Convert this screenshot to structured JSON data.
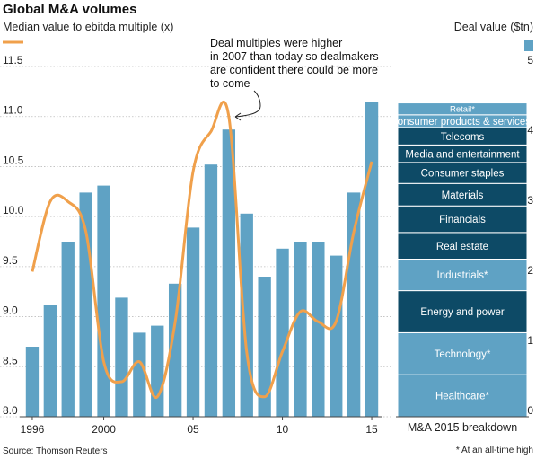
{
  "chart_data": {
    "type": "bar+line",
    "title": "Global M&A volumes",
    "line_axis_label": "Median value to ebitda multiple (x)",
    "bar_axis_label": "Deal value ($tn)",
    "x": [
      1996,
      1997,
      1998,
      1999,
      2000,
      2001,
      2002,
      2003,
      2004,
      2005,
      2006,
      2007,
      2008,
      2009,
      2010,
      2011,
      2012,
      2013,
      2014,
      2015
    ],
    "x_tick_labels": [
      "1996",
      "2000",
      "05",
      "10",
      "15"
    ],
    "x_tick_years": [
      1996,
      2000,
      2005,
      2010,
      2015
    ],
    "series": [
      {
        "kind": "bar",
        "axis": "right",
        "color": "#5fa2c4",
        "values": [
          1.0,
          1.6,
          2.5,
          3.2,
          3.3,
          1.7,
          1.2,
          1.3,
          1.9,
          2.7,
          3.6,
          4.1,
          2.9,
          2.0,
          2.4,
          2.5,
          2.5,
          2.3,
          3.2,
          4.5
        ]
      },
      {
        "kind": "line",
        "axis": "left",
        "color": "#f0a04b",
        "values": [
          9.45,
          10.15,
          10.15,
          9.85,
          8.55,
          8.35,
          8.55,
          8.2,
          8.95,
          10.45,
          10.85,
          11.0,
          8.65,
          8.2,
          8.65,
          9.05,
          8.95,
          8.95,
          9.85,
          10.55
        ]
      }
    ],
    "left_axis": {
      "range": [
        8.0,
        11.5
      ],
      "ticks": [
        "8.0",
        "8.5",
        "9.0",
        "9.5",
        "10.0",
        "10.5",
        "11.0",
        "11.5"
      ]
    },
    "right_axis": {
      "range": [
        0,
        5
      ],
      "ticks": [
        "0",
        "1",
        "2",
        "3",
        "4",
        "5"
      ]
    },
    "annotation": "Deal multiples were higher in 2007 than today so dealmakers are confident there could be more to come",
    "annotation_lines": [
      "Deal multiples were higher",
      "in 2007 than today so dealmakers",
      "are confident there could be more",
      "to come"
    ],
    "breakdown": {
      "label": "M&A 2015 breakdown",
      "segments": [
        {
          "name": "Healthcare*",
          "value": 0.6,
          "color": "#5fa2c4"
        },
        {
          "name": "Technology*",
          "value": 0.6,
          "color": "#5fa2c4"
        },
        {
          "name": "Energy and power",
          "value": 0.6,
          "color": "#0d4a66"
        },
        {
          "name": "Industrials*",
          "value": 0.45,
          "color": "#5fa2c4"
        },
        {
          "name": "Real estate",
          "value": 0.38,
          "color": "#0d4a66"
        },
        {
          "name": "Financials",
          "value": 0.38,
          "color": "#0d4a66"
        },
        {
          "name": "Materials",
          "value": 0.32,
          "color": "#0d4a66"
        },
        {
          "name": "Consumer staples",
          "value": 0.3,
          "color": "#0d4a66"
        },
        {
          "name": "Media and entertainment",
          "value": 0.25,
          "color": "#0d4a66"
        },
        {
          "name": "Telecoms",
          "value": 0.25,
          "color": "#0d4a66"
        },
        {
          "name": "Consumer products & services*",
          "value": 0.18,
          "color": "#5fa2c4"
        },
        {
          "name": "Retail*",
          "value": 0.17,
          "color": "#5fa2c4"
        }
      ]
    },
    "source": "Source: Thomson Reuters",
    "footnote": "* At an all-time high"
  }
}
